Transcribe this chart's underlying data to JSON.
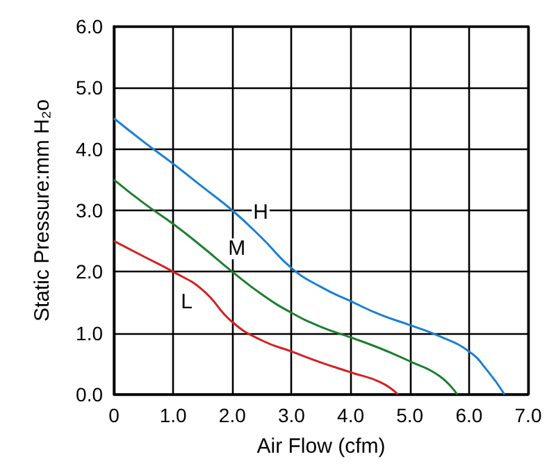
{
  "chart_data": {
    "type": "line",
    "xlabel": "Air Flow (cfm)",
    "ylabel": "Static Pressure:mm H₂o",
    "xlim": [
      0,
      7
    ],
    "ylim": [
      0,
      6
    ],
    "xticks": [
      {
        "value": 0,
        "label": "0"
      },
      {
        "value": 1,
        "label": "1.0"
      },
      {
        "value": 2,
        "label": "2.0"
      },
      {
        "value": 3,
        "label": "3.0"
      },
      {
        "value": 4,
        "label": "4.0"
      },
      {
        "value": 5,
        "label": "5.0"
      },
      {
        "value": 6,
        "label": "6.0"
      },
      {
        "value": 7,
        "label": "7.0"
      }
    ],
    "yticks": [
      {
        "value": 0,
        "label": "0.0"
      },
      {
        "value": 1,
        "label": "1.0"
      },
      {
        "value": 2,
        "label": "2.0"
      },
      {
        "value": 3,
        "label": "3.0"
      },
      {
        "value": 4,
        "label": "4.0"
      },
      {
        "value": 5,
        "label": "5.0"
      },
      {
        "value": 6,
        "label": "6.0"
      }
    ],
    "grid": true,
    "marker": "none",
    "line_style": "solid",
    "series": [
      {
        "name": "H",
        "color": "#1a7fd4",
        "x": [
          0,
          0.5,
          1,
          1.5,
          2,
          2.5,
          3,
          3.5,
          4,
          4.5,
          5,
          5.5,
          6,
          6.3,
          6.6
        ],
        "values": [
          4.5,
          4.12,
          3.76,
          3.38,
          3.0,
          2.55,
          2.06,
          1.75,
          1.52,
          1.3,
          1.13,
          0.95,
          0.7,
          0.4,
          0
        ]
      },
      {
        "name": "M",
        "color": "#1d7f2e",
        "x": [
          0,
          0.5,
          1,
          1.5,
          2,
          2.5,
          3,
          3.5,
          4,
          4.5,
          5,
          5.5,
          5.8
        ],
        "values": [
          3.5,
          3.12,
          2.78,
          2.4,
          2.0,
          1.63,
          1.33,
          1.1,
          0.93,
          0.75,
          0.54,
          0.3,
          0
        ]
      },
      {
        "name": "L",
        "color": "#d42020",
        "x": [
          0,
          0.5,
          1,
          1.5,
          2,
          2.5,
          3,
          3.5,
          4,
          4.5,
          4.8
        ],
        "values": [
          2.5,
          2.25,
          2.0,
          1.7,
          1.18,
          0.88,
          0.7,
          0.52,
          0.36,
          0.2,
          0
        ]
      }
    ]
  }
}
